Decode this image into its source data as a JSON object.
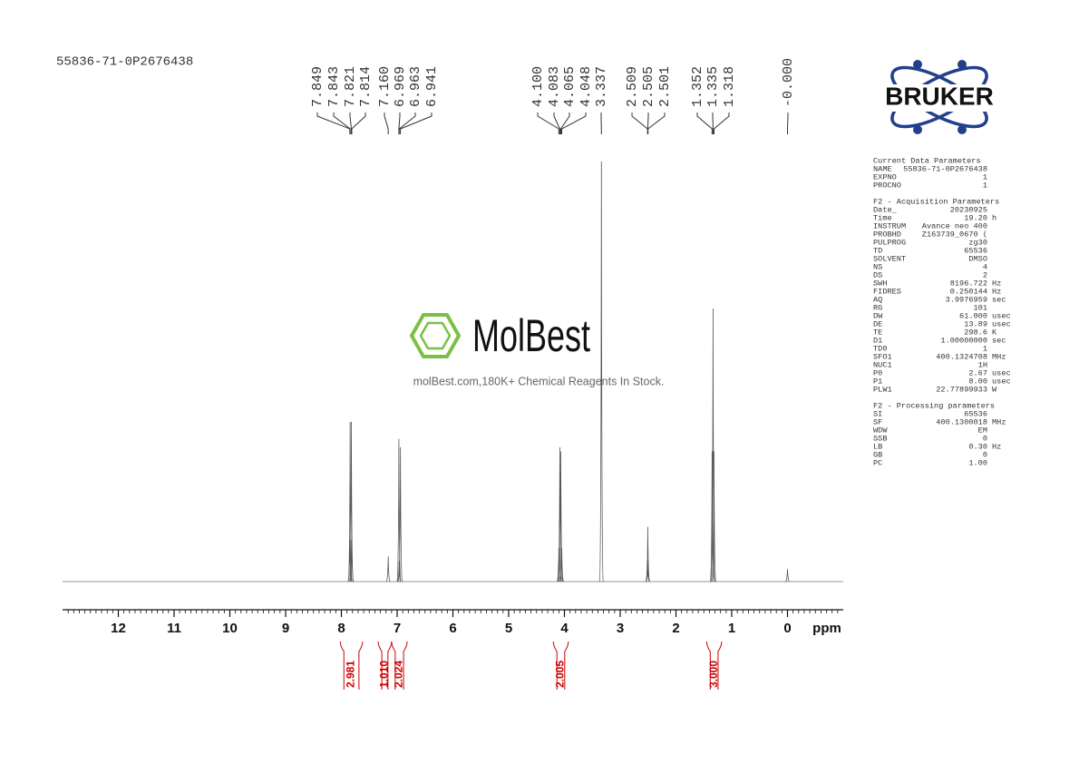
{
  "sample_id": "55836-71-0P2676438",
  "chart_data": {
    "type": "nmr",
    "x_label": "ppm",
    "xlim": [
      13,
      -1
    ],
    "xticks": [
      12,
      11,
      10,
      9,
      8,
      7,
      6,
      5,
      4,
      3,
      2,
      1,
      0
    ],
    "ylim": [
      0,
      100
    ],
    "color": "#555555",
    "x": [
      7.849,
      7.843,
      7.821,
      7.814,
      7.16,
      6.969,
      6.963,
      6.941,
      4.1,
      4.083,
      4.065,
      4.048,
      3.337,
      2.509,
      2.505,
      2.501,
      1.352,
      1.335,
      1.318,
      0.0
    ],
    "values": [
      10,
      38,
      38,
      10,
      6,
      34,
      5,
      32,
      8,
      32,
      31,
      8,
      100,
      5,
      13,
      5,
      31,
      65,
      31,
      3
    ],
    "peak_labels": [
      {
        "value": 7.849,
        "label": "7.849"
      },
      {
        "value": 7.843,
        "label": "7.843"
      },
      {
        "value": 7.821,
        "label": "7.821"
      },
      {
        "value": 7.814,
        "label": "7.814"
      },
      {
        "value": 7.16,
        "label": "7.160"
      },
      {
        "value": 6.969,
        "label": "6.969"
      },
      {
        "value": 6.963,
        "label": "6.963"
      },
      {
        "value": 6.941,
        "label": "6.941"
      },
      {
        "value": 4.1,
        "label": "4.100"
      },
      {
        "value": 4.083,
        "label": "4.083"
      },
      {
        "value": 4.065,
        "label": "4.065"
      },
      {
        "value": 4.048,
        "label": "4.048"
      },
      {
        "value": 3.337,
        "label": "3.337"
      },
      {
        "value": 2.509,
        "label": "2.509"
      },
      {
        "value": 2.505,
        "label": "2.505"
      },
      {
        "value": 2.501,
        "label": "2.501"
      },
      {
        "value": 1.352,
        "label": "1.352"
      },
      {
        "value": 1.335,
        "label": "1.335"
      },
      {
        "value": 1.318,
        "label": "1.318"
      },
      {
        "value": 0,
        "label": "-0.000"
      }
    ],
    "integrals": {
      "color": "#cc0000",
      "ranges": [
        [
          8.02,
          7.62
        ],
        [
          7.34,
          7.1
        ],
        [
          7.1,
          6.82
        ],
        [
          4.2,
          3.93
        ],
        [
          1.45,
          1.18
        ]
      ],
      "values": [
        2.981,
        1.01,
        2.024,
        2.005,
        3
      ],
      "value_labels": [
        "2.981",
        "1.010",
        "2.024",
        "2.005",
        "3.000"
      ]
    }
  },
  "logo": {
    "text": "BRUKER"
  },
  "watermark": {
    "brand": "MolBest",
    "tagline": "molBest.com,180K+ Chemical Reagents In Stock."
  },
  "parameters": [
    {
      "title": "Current Data Parameters",
      "rows": [
        [
          "NAME",
          "55836-71-0P2676438"
        ],
        [
          "EXPNO",
          "1"
        ],
        [
          "PROCNO",
          "1"
        ]
      ]
    },
    {
      "title": "F2 - Acquisition Parameters",
      "rows": [
        [
          "Date_",
          "20230925"
        ],
        [
          "Time",
          "19.20",
          "h"
        ],
        [
          "INSTRUM",
          "Avance neo 400"
        ],
        [
          "PROBHD",
          "Z163739_0670 ("
        ],
        [
          "PULPROG",
          "zg30"
        ],
        [
          "TD",
          "65536"
        ],
        [
          "SOLVENT",
          "DMSO"
        ],
        [
          "NS",
          "4"
        ],
        [
          "DS",
          "2"
        ],
        [
          "SWH",
          "8196.722",
          "Hz"
        ],
        [
          "FIDRES",
          "0.250144",
          "Hz"
        ],
        [
          "AQ",
          "3.9976959",
          "sec"
        ],
        [
          "RG",
          "101"
        ],
        [
          "DW",
          "61.000",
          "usec"
        ],
        [
          "DE",
          "13.89",
          "usec"
        ],
        [
          "TE",
          "298.6",
          "K"
        ],
        [
          "D1",
          "1.00000000",
          "sec"
        ],
        [
          "TD0",
          "1"
        ],
        [
          "SFO1",
          "400.1324708",
          "MHz"
        ],
        [
          "NUC1",
          "1H"
        ],
        [
          "P0",
          "2.67",
          "usec"
        ],
        [
          "P1",
          "8.00",
          "usec"
        ],
        [
          "PLW1",
          "22.77899933",
          "W"
        ]
      ]
    },
    {
      "title": "F2 - Processing parameters",
      "rows": [
        [
          "SI",
          "65536"
        ],
        [
          "SF",
          "400.1300018",
          "MHz"
        ],
        [
          "WDW",
          "EM"
        ],
        [
          "SSB",
          "0"
        ],
        [
          "LB",
          "0.30",
          "Hz"
        ],
        [
          "GB",
          "0"
        ],
        [
          "PC",
          "1.00"
        ]
      ]
    }
  ]
}
